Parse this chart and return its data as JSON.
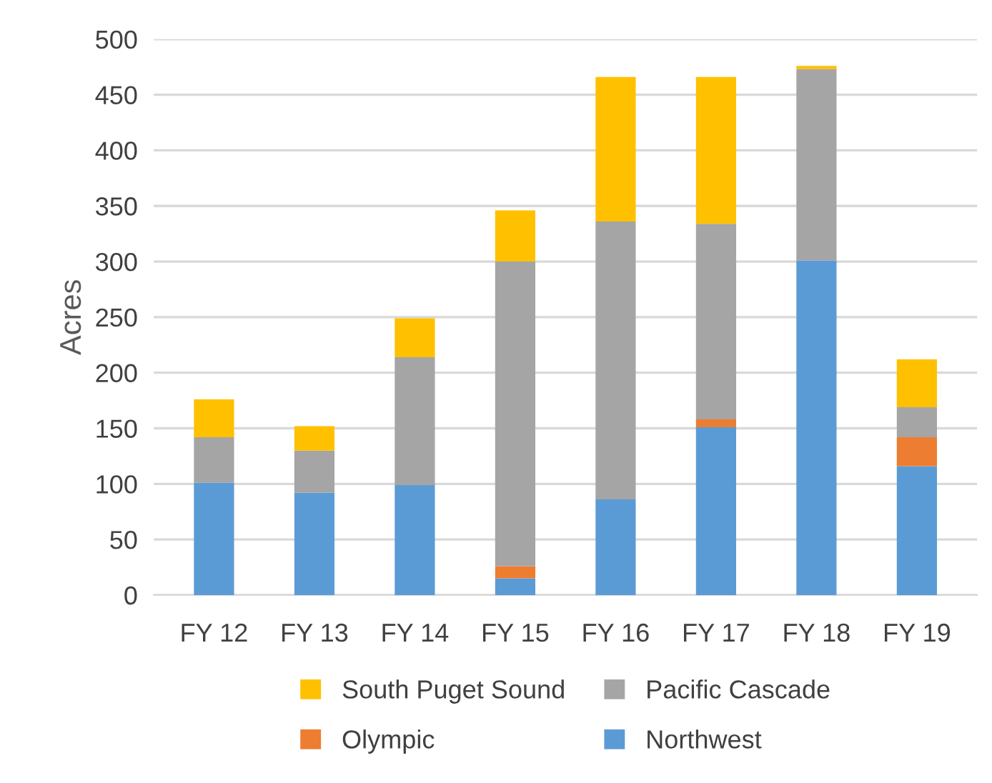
{
  "chart_data": {
    "type": "bar",
    "stacked": true,
    "ylabel": "Acres",
    "categories": [
      "FY 12",
      "FY 13",
      "FY 14",
      "FY 15",
      "FY 16",
      "FY 17",
      "FY 18",
      "FY 19"
    ],
    "series": [
      {
        "name": "Northwest",
        "color": "#5b9bd5",
        "values": [
          101,
          92,
          99,
          15,
          86,
          151,
          301,
          116
        ]
      },
      {
        "name": "Olympic",
        "color": "#ed7d31",
        "values": [
          0,
          0,
          0,
          11,
          0,
          7,
          0,
          26
        ]
      },
      {
        "name": "Pacific Cascade",
        "color": "#a5a5a5",
        "values": [
          41,
          38,
          115,
          274,
          250,
          176,
          172,
          27
        ]
      },
      {
        "name": "South Puget Sound",
        "color": "#ffc000",
        "values": [
          34,
          22,
          35,
          46,
          130,
          132,
          3,
          43
        ]
      }
    ],
    "ylim": [
      0,
      500
    ],
    "yticks": [
      0,
      50,
      100,
      150,
      200,
      250,
      300,
      350,
      400,
      450,
      500
    ],
    "grid": "y",
    "legend": "bottom"
  }
}
